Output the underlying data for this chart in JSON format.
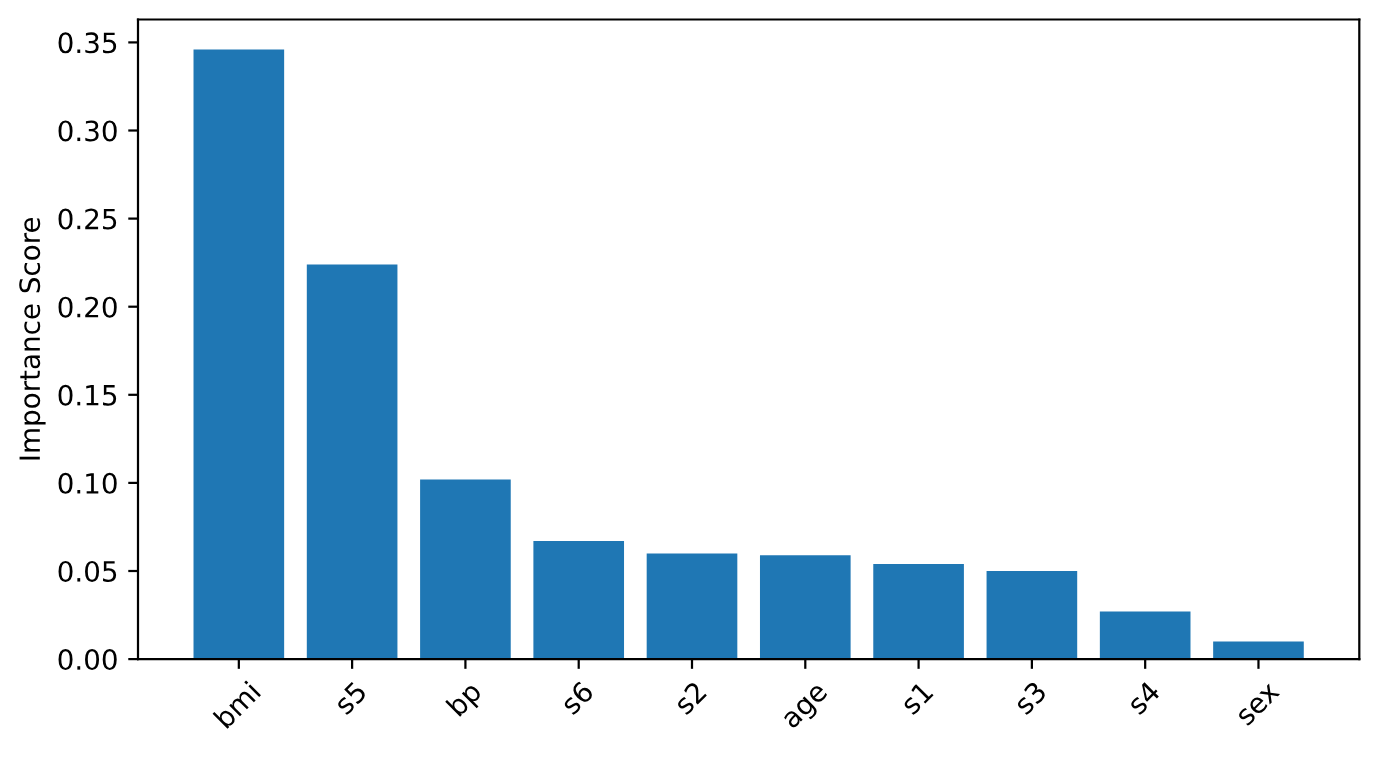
{
  "chart_data": {
    "type": "bar",
    "ylabel": "Importance Score",
    "categories": [
      "bmi",
      "s5",
      "bp",
      "s6",
      "s2",
      "age",
      "s1",
      "s3",
      "s4",
      "sex"
    ],
    "values": [
      0.346,
      0.224,
      0.102,
      0.067,
      0.06,
      0.059,
      0.054,
      0.05,
      0.027,
      0.01
    ],
    "color": "#1f77b4",
    "ylim": [
      0,
      0.363
    ],
    "yticks": [
      {
        "value": 0,
        "label": "0.00"
      },
      {
        "value": 0.05,
        "label": "0.05"
      },
      {
        "value": 0.1,
        "label": "0.10"
      },
      {
        "value": 0.15,
        "label": "0.15"
      },
      {
        "value": 0.2,
        "label": "0.20"
      },
      {
        "value": 0.25,
        "label": "0.25"
      },
      {
        "value": 0.3,
        "label": "0.30"
      },
      {
        "value": 0.35,
        "label": "0.35"
      }
    ],
    "grid": false
  }
}
